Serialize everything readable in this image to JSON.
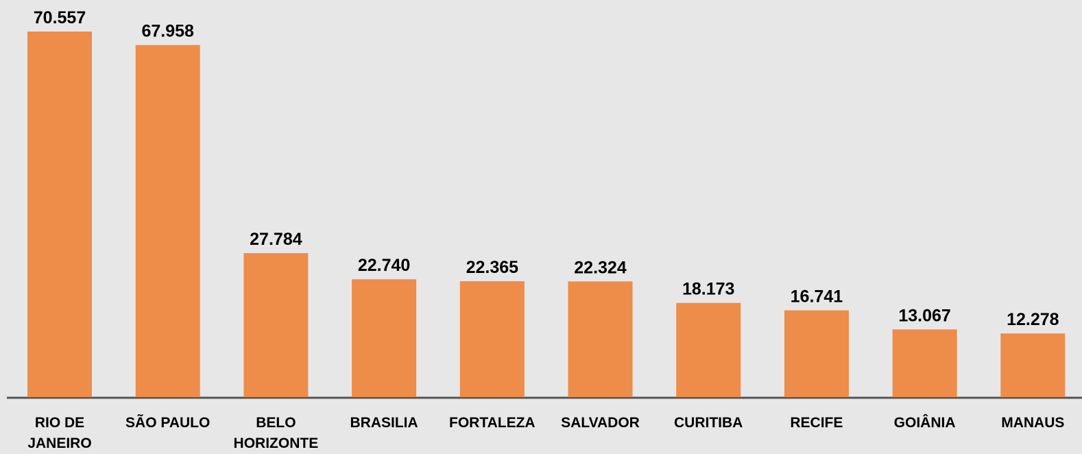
{
  "chart_data": {
    "type": "bar",
    "categories": [
      "RIO DE JANEIRO",
      "SÃO PAULO",
      "BELO HORIZONTE",
      "BRASILIA",
      "FORTALEZA",
      "SALVADOR",
      "CURITIBA",
      "RECIFE",
      "GOIÂNIA",
      "MANAUS"
    ],
    "values": [
      70557,
      67958,
      27784,
      22740,
      22365,
      22324,
      18173,
      16741,
      13067,
      12278
    ],
    "value_labels": [
      "70.557",
      "67.958",
      "27.784",
      "22.740",
      "22.365",
      "22.324",
      "18.173",
      "16.741",
      "13.067",
      "12.278"
    ],
    "color": "#ee8c4a"
  }
}
